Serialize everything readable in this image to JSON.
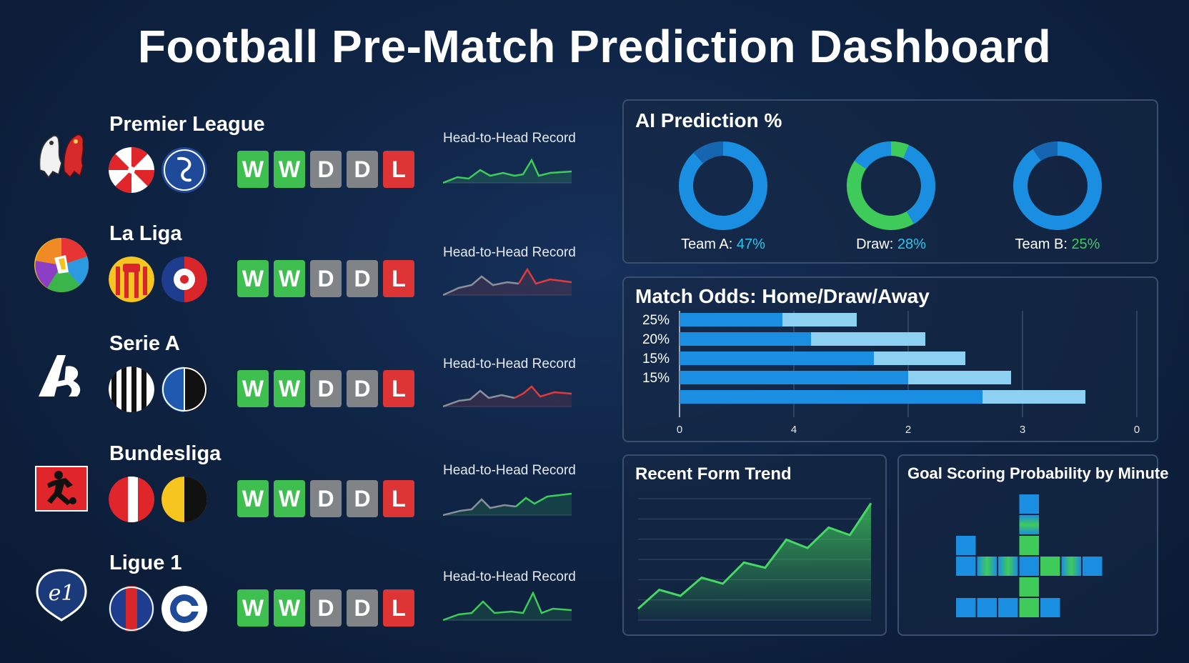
{
  "dashboard": {
    "title": "Football Pre-Match Prediction Dashboard"
  },
  "colors": {
    "win": "#3fbf4f",
    "draw": "#808487",
    "loss": "#dd3535",
    "blue": "#1a8ee0",
    "light_blue": "#8ed0f2",
    "green": "#3fcb5a",
    "cyan": "#28c8f0"
  },
  "leagues": [
    {
      "name": "Premier League",
      "logo_icon": "lion-crest-icon",
      "form": [
        "W",
        "W",
        "D",
        "D",
        "L"
      ],
      "h2h_label": "Head-to-Head Record",
      "spark_color": "#3fcb5a"
    },
    {
      "name": "La Liga",
      "logo_icon": "la-liga-ball-icon",
      "form": [
        "W",
        "W",
        "D",
        "D",
        "L"
      ],
      "h2h_label": "Head-to-Head Record",
      "spark_color": "#e03a3a"
    },
    {
      "name": "Serie A",
      "logo_icon": "serie-a-icon",
      "form": [
        "W",
        "W",
        "D",
        "D",
        "L"
      ],
      "h2h_label": "Head-to-Head Record",
      "spark_color": "#e03a3a"
    },
    {
      "name": "Bundesliga",
      "logo_icon": "bundesliga-player-icon",
      "form": [
        "W",
        "W",
        "D",
        "D",
        "L"
      ],
      "h2h_label": "Head-to-Head Record",
      "spark_color": "#3fcb5a"
    },
    {
      "name": "Ligue 1",
      "logo_icon": "ligue-1-icon",
      "form": [
        "W",
        "W",
        "D",
        "D",
        "L"
      ],
      "h2h_label": "Head-to-Head Record",
      "spark_color": "#3fcb5a"
    }
  ],
  "ai_prediction": {
    "title": "AI Prediction %",
    "items": [
      {
        "label": "Team A:",
        "value": "47%",
        "value_color": "#28c8f0"
      },
      {
        "label": "Draw:",
        "value": "28%",
        "value_color": "#28c8f0"
      },
      {
        "label": "Team B:",
        "value": "25%",
        "value_color": "#3fcb5a"
      }
    ]
  },
  "match_odds": {
    "title": "Match Odds: Home/Draw/Away",
    "chart_data": {
      "type": "bar",
      "orientation": "horizontal",
      "stacked": true,
      "categories": [
        "25%",
        "20%",
        "15%",
        "15%",
        ""
      ],
      "series": [
        {
          "values": [
            0.9,
            1.15,
            1.7,
            2.0,
            2.65
          ]
        },
        {
          "values": [
            0.65,
            1.0,
            0.8,
            0.9,
            0.9
          ]
        }
      ],
      "x_ticks": [
        "0",
        "4",
        "2",
        "3",
        "0"
      ],
      "xlim": [
        0,
        4
      ]
    }
  },
  "recent_form": {
    "title": "Recent Form Trend",
    "chart_data": {
      "type": "area",
      "x": [
        0,
        1,
        2,
        3,
        4,
        5,
        6,
        7,
        8,
        9,
        10,
        11
      ],
      "y": [
        1.5,
        4,
        3.2,
        5.6,
        4.8,
        7.6,
        6.9,
        10.6,
        9.5,
        12.2,
        11.2,
        15.4
      ]
    }
  },
  "goal_probability": {
    "title": "Goal Scoring Probability by Minute",
    "chart_data": {
      "type": "heatmap",
      "cells": [
        {
          "col": 3,
          "row": 0,
          "color": "blue"
        },
        {
          "col": 3,
          "row": 1,
          "color": "mixed"
        },
        {
          "col": 0,
          "row": 2,
          "color": "blue"
        },
        {
          "col": 3,
          "row": 2,
          "color": "green"
        },
        {
          "col": 0,
          "row": 3,
          "color": "blue"
        },
        {
          "col": 1,
          "row": 3,
          "color": "mixed"
        },
        {
          "col": 2,
          "row": 3,
          "color": "mixed"
        },
        {
          "col": 3,
          "row": 3,
          "color": "blue"
        },
        {
          "col": 4,
          "row": 3,
          "color": "green"
        },
        {
          "col": 5,
          "row": 3,
          "color": "mixed"
        },
        {
          "col": 6,
          "row": 3,
          "color": "blue"
        },
        {
          "col": 3,
          "row": 4,
          "color": "green"
        },
        {
          "col": 0,
          "row": 5,
          "color": "blue"
        },
        {
          "col": 1,
          "row": 5,
          "color": "blue"
        },
        {
          "col": 2,
          "row": 5,
          "color": "blue"
        },
        {
          "col": 3,
          "row": 5,
          "color": "green"
        },
        {
          "col": 4,
          "row": 5,
          "color": "blue"
        }
      ]
    }
  }
}
